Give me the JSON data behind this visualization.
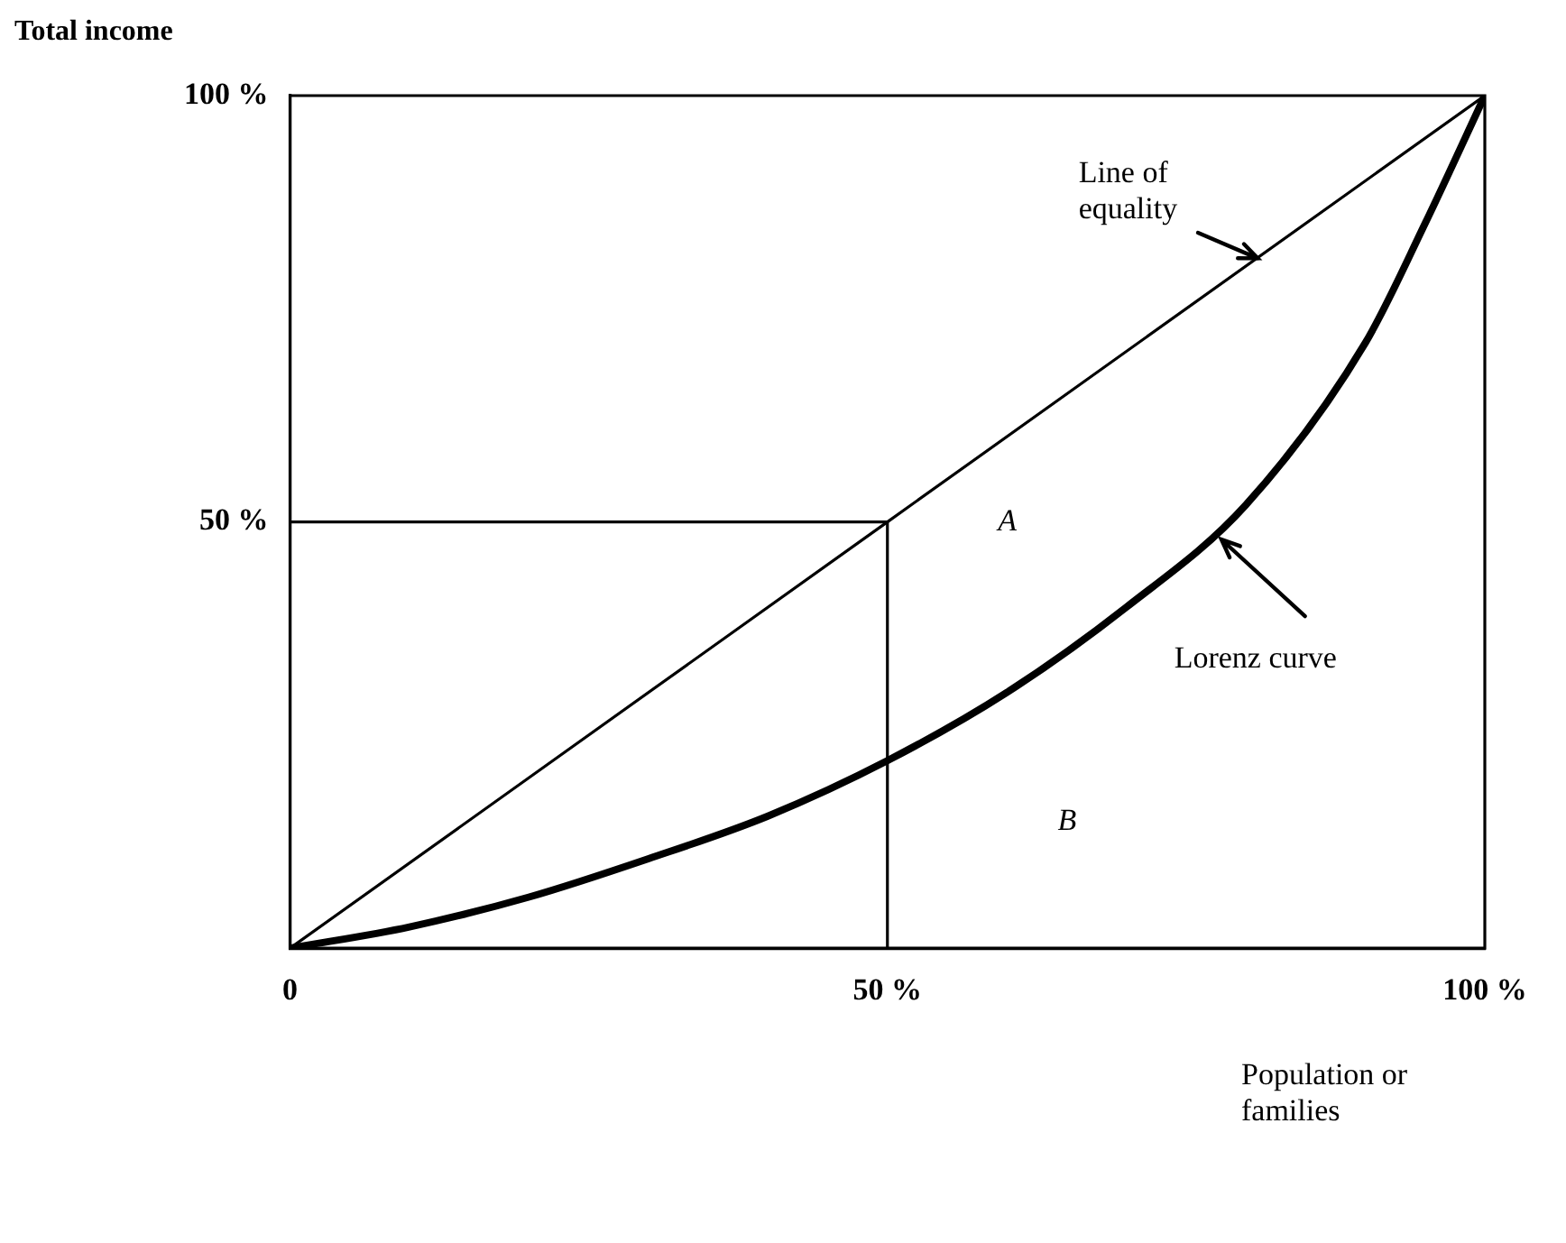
{
  "chart_data": {
    "type": "line",
    "xlabel": "Population or\nfamilies",
    "ylabel": "Total income",
    "xlim": [
      0,
      100
    ],
    "ylim": [
      0,
      100
    ],
    "xticks": [
      {
        "value": 0,
        "label": "0"
      },
      {
        "value": 50,
        "label": "50 %"
      },
      {
        "value": 100,
        "label": "100 %"
      }
    ],
    "yticks": [
      {
        "value": 0,
        "label": null
      },
      {
        "value": 50,
        "label": "50 %"
      },
      {
        "value": 100,
        "label": "100 %"
      }
    ],
    "grid": false,
    "legend": false,
    "marker": "none",
    "line_style": "solid",
    "series": [
      {
        "name": "Line of equality",
        "color": "#000000",
        "x": [
          0,
          50,
          100
        ],
        "values": [
          0,
          50,
          100
        ]
      },
      {
        "name": "Lorenz curve",
        "color": "#000000",
        "x": [
          0,
          10,
          20,
          30,
          40,
          50,
          60,
          70,
          80,
          90,
          95,
          100
        ],
        "values": [
          0,
          2.5,
          6,
          10.5,
          15.5,
          22,
          30,
          40,
          52,
          71,
          85,
          100
        ]
      },
      {
        "color": "#000000",
        "x": [
          0,
          50,
          50
        ],
        "values": [
          50,
          50,
          0
        ]
      }
    ],
    "annotations": [
      "A",
      "B"
    ]
  }
}
